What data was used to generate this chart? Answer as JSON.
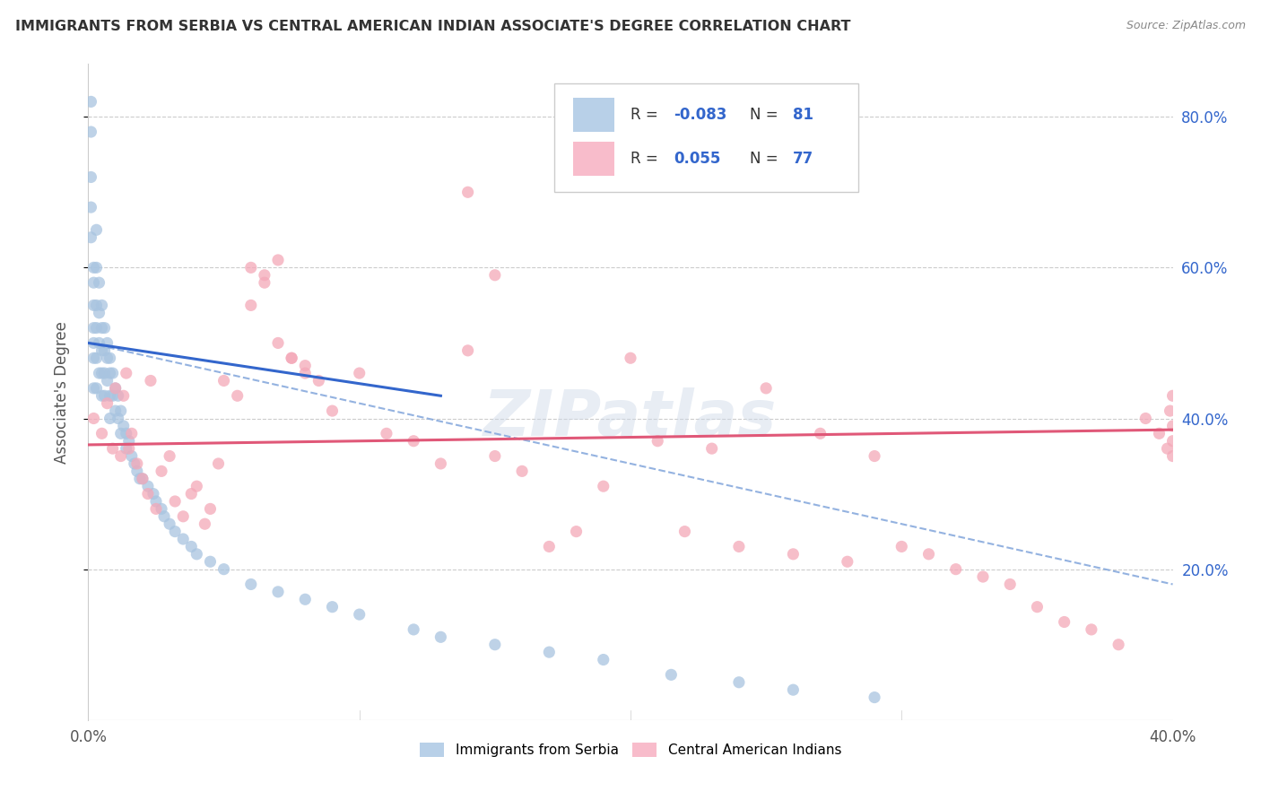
{
  "title": "IMMIGRANTS FROM SERBIA VS CENTRAL AMERICAN INDIAN ASSOCIATE'S DEGREE CORRELATION CHART",
  "source": "Source: ZipAtlas.com",
  "ylabel": "Associate's Degree",
  "xlim": [
    0.0,
    0.4
  ],
  "ylim": [
    0.0,
    0.87
  ],
  "right_yticks": [
    0.2,
    0.4,
    0.6,
    0.8
  ],
  "right_ytick_labels": [
    "20.0%",
    "40.0%",
    "60.0%",
    "80.0%"
  ],
  "serbia_R": -0.083,
  "serbia_N": 81,
  "central_R": 0.055,
  "central_N": 77,
  "serbia_color": "#a8c4e0",
  "central_color": "#f4a8b8",
  "serbia_line_color": "#3366cc",
  "central_line_color": "#e05878",
  "trend_dash_color": "#88aadd",
  "watermark": "ZIPatlas",
  "legend_serbia_color": "#b8d0e8",
  "legend_central_color": "#f8bccb",
  "serbia_x": [
    0.001,
    0.001,
    0.001,
    0.001,
    0.001,
    0.002,
    0.002,
    0.002,
    0.002,
    0.002,
    0.002,
    0.002,
    0.003,
    0.003,
    0.003,
    0.003,
    0.003,
    0.003,
    0.004,
    0.004,
    0.004,
    0.004,
    0.005,
    0.005,
    0.005,
    0.005,
    0.005,
    0.006,
    0.006,
    0.006,
    0.006,
    0.007,
    0.007,
    0.007,
    0.008,
    0.008,
    0.008,
    0.008,
    0.009,
    0.009,
    0.01,
    0.01,
    0.011,
    0.011,
    0.012,
    0.012,
    0.013,
    0.014,
    0.014,
    0.015,
    0.016,
    0.017,
    0.018,
    0.019,
    0.02,
    0.022,
    0.024,
    0.025,
    0.027,
    0.028,
    0.03,
    0.032,
    0.035,
    0.038,
    0.04,
    0.045,
    0.05,
    0.06,
    0.07,
    0.08,
    0.09,
    0.1,
    0.12,
    0.13,
    0.15,
    0.17,
    0.19,
    0.215,
    0.24,
    0.26,
    0.29
  ],
  "serbia_y": [
    0.82,
    0.78,
    0.72,
    0.68,
    0.64,
    0.6,
    0.58,
    0.55,
    0.52,
    0.5,
    0.48,
    0.44,
    0.65,
    0.6,
    0.55,
    0.52,
    0.48,
    0.44,
    0.58,
    0.54,
    0.5,
    0.46,
    0.55,
    0.52,
    0.49,
    0.46,
    0.43,
    0.52,
    0.49,
    0.46,
    0.43,
    0.5,
    0.48,
    0.45,
    0.48,
    0.46,
    0.43,
    0.4,
    0.46,
    0.43,
    0.44,
    0.41,
    0.43,
    0.4,
    0.41,
    0.38,
    0.39,
    0.38,
    0.36,
    0.37,
    0.35,
    0.34,
    0.33,
    0.32,
    0.32,
    0.31,
    0.3,
    0.29,
    0.28,
    0.27,
    0.26,
    0.25,
    0.24,
    0.23,
    0.22,
    0.21,
    0.2,
    0.18,
    0.17,
    0.16,
    0.15,
    0.14,
    0.12,
    0.11,
    0.1,
    0.09,
    0.08,
    0.06,
    0.05,
    0.04,
    0.03
  ],
  "central_x": [
    0.002,
    0.005,
    0.007,
    0.009,
    0.01,
    0.012,
    0.013,
    0.014,
    0.015,
    0.016,
    0.018,
    0.02,
    0.022,
    0.023,
    0.025,
    0.027,
    0.03,
    0.032,
    0.035,
    0.038,
    0.04,
    0.043,
    0.045,
    0.048,
    0.05,
    0.055,
    0.06,
    0.065,
    0.07,
    0.075,
    0.08,
    0.085,
    0.09,
    0.1,
    0.11,
    0.12,
    0.13,
    0.14,
    0.15,
    0.16,
    0.17,
    0.18,
    0.19,
    0.2,
    0.21,
    0.22,
    0.23,
    0.24,
    0.25,
    0.26,
    0.27,
    0.28,
    0.29,
    0.3,
    0.31,
    0.32,
    0.33,
    0.34,
    0.35,
    0.36,
    0.37,
    0.38,
    0.39,
    0.395,
    0.398,
    0.399,
    0.4,
    0.4,
    0.4,
    0.4,
    0.14,
    0.15,
    0.06,
    0.065,
    0.07,
    0.075,
    0.08
  ],
  "central_y": [
    0.4,
    0.38,
    0.42,
    0.36,
    0.44,
    0.35,
    0.43,
    0.46,
    0.36,
    0.38,
    0.34,
    0.32,
    0.3,
    0.45,
    0.28,
    0.33,
    0.35,
    0.29,
    0.27,
    0.3,
    0.31,
    0.26,
    0.28,
    0.34,
    0.45,
    0.43,
    0.55,
    0.59,
    0.61,
    0.48,
    0.47,
    0.45,
    0.41,
    0.46,
    0.38,
    0.37,
    0.34,
    0.49,
    0.35,
    0.33,
    0.23,
    0.25,
    0.31,
    0.48,
    0.37,
    0.25,
    0.36,
    0.23,
    0.44,
    0.22,
    0.38,
    0.21,
    0.35,
    0.23,
    0.22,
    0.2,
    0.19,
    0.18,
    0.15,
    0.13,
    0.12,
    0.1,
    0.4,
    0.38,
    0.36,
    0.41,
    0.39,
    0.35,
    0.43,
    0.37,
    0.7,
    0.59,
    0.6,
    0.58,
    0.5,
    0.48,
    0.46
  ],
  "serbia_line_x0": 0.0,
  "serbia_line_x1": 0.13,
  "serbia_line_y0": 0.5,
  "serbia_line_y1": 0.43,
  "dash_line_x0": 0.0,
  "dash_line_x1": 0.4,
  "dash_line_y0": 0.5,
  "dash_line_y1": 0.18,
  "central_line_x0": 0.0,
  "central_line_x1": 0.4,
  "central_line_y0": 0.365,
  "central_line_y1": 0.385
}
